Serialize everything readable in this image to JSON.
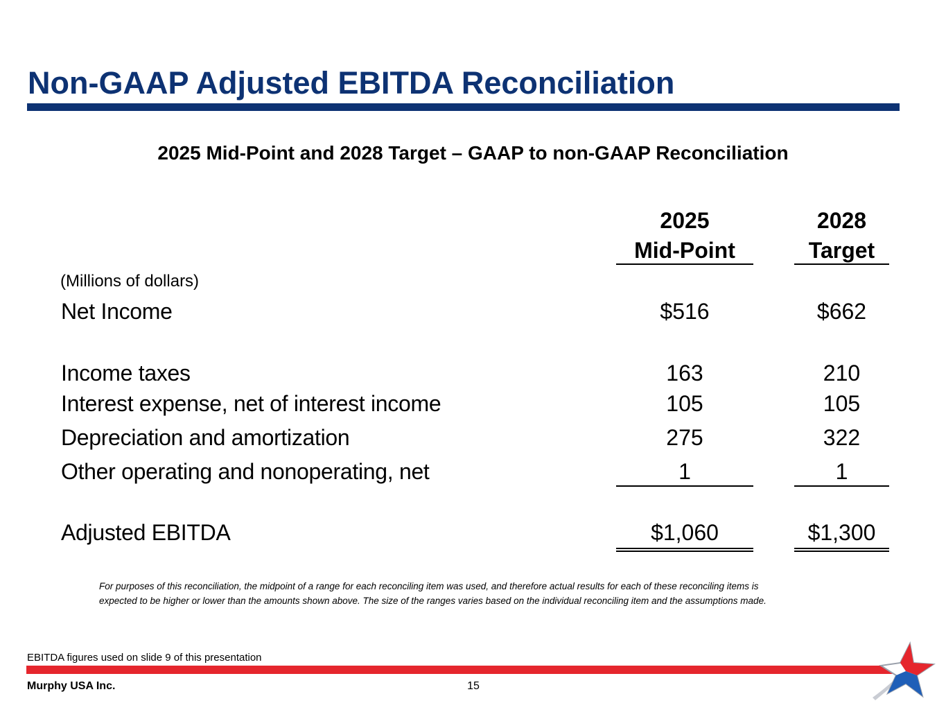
{
  "slide": {
    "title": "Non-GAAP Adjusted EBITDA Reconciliation",
    "subtitle": "2025 Mid-Point and 2028 Target – GAAP to non-GAAP Reconciliation",
    "page_number": "15",
    "company": "Murphy USA Inc.",
    "footnote": "EBITDA figures used on slide 9 of this presentation"
  },
  "table": {
    "units": "(Millions of dollars)",
    "columns": [
      {
        "year": "2025",
        "label": "Mid-Point"
      },
      {
        "year": "2028",
        "label": "Target"
      }
    ],
    "rows": [
      {
        "label": "Net Income",
        "values": [
          "$516",
          "$662"
        ]
      },
      {
        "label": "Income taxes",
        "values": [
          "163",
          "210"
        ]
      },
      {
        "label": "Interest expense, net of interest income",
        "values": [
          "105",
          "105"
        ]
      },
      {
        "label": "Depreciation and amortization",
        "values": [
          "275",
          "322"
        ]
      },
      {
        "label": "Other operating and nonoperating, net",
        "values": [
          "1",
          "1"
        ]
      }
    ],
    "total": {
      "label": "Adjusted EBITDA",
      "values": [
        "$1,060",
        "$1,300"
      ]
    }
  },
  "note": {
    "line1": "For purposes of this reconciliation, the midpoint of a range for each reconciling item was used, and therefore actual results for each of these reconciling items is",
    "line2": "expected to be higher or lower than the amounts shown above.  The size of the ranges varies based on the individual reconciling item and the assumptions made."
  },
  "colors": {
    "brand_blue": "#0d3273",
    "brand_red": "#e5262d"
  },
  "icons": {
    "logo": "murphy-usa-star-logo"
  }
}
